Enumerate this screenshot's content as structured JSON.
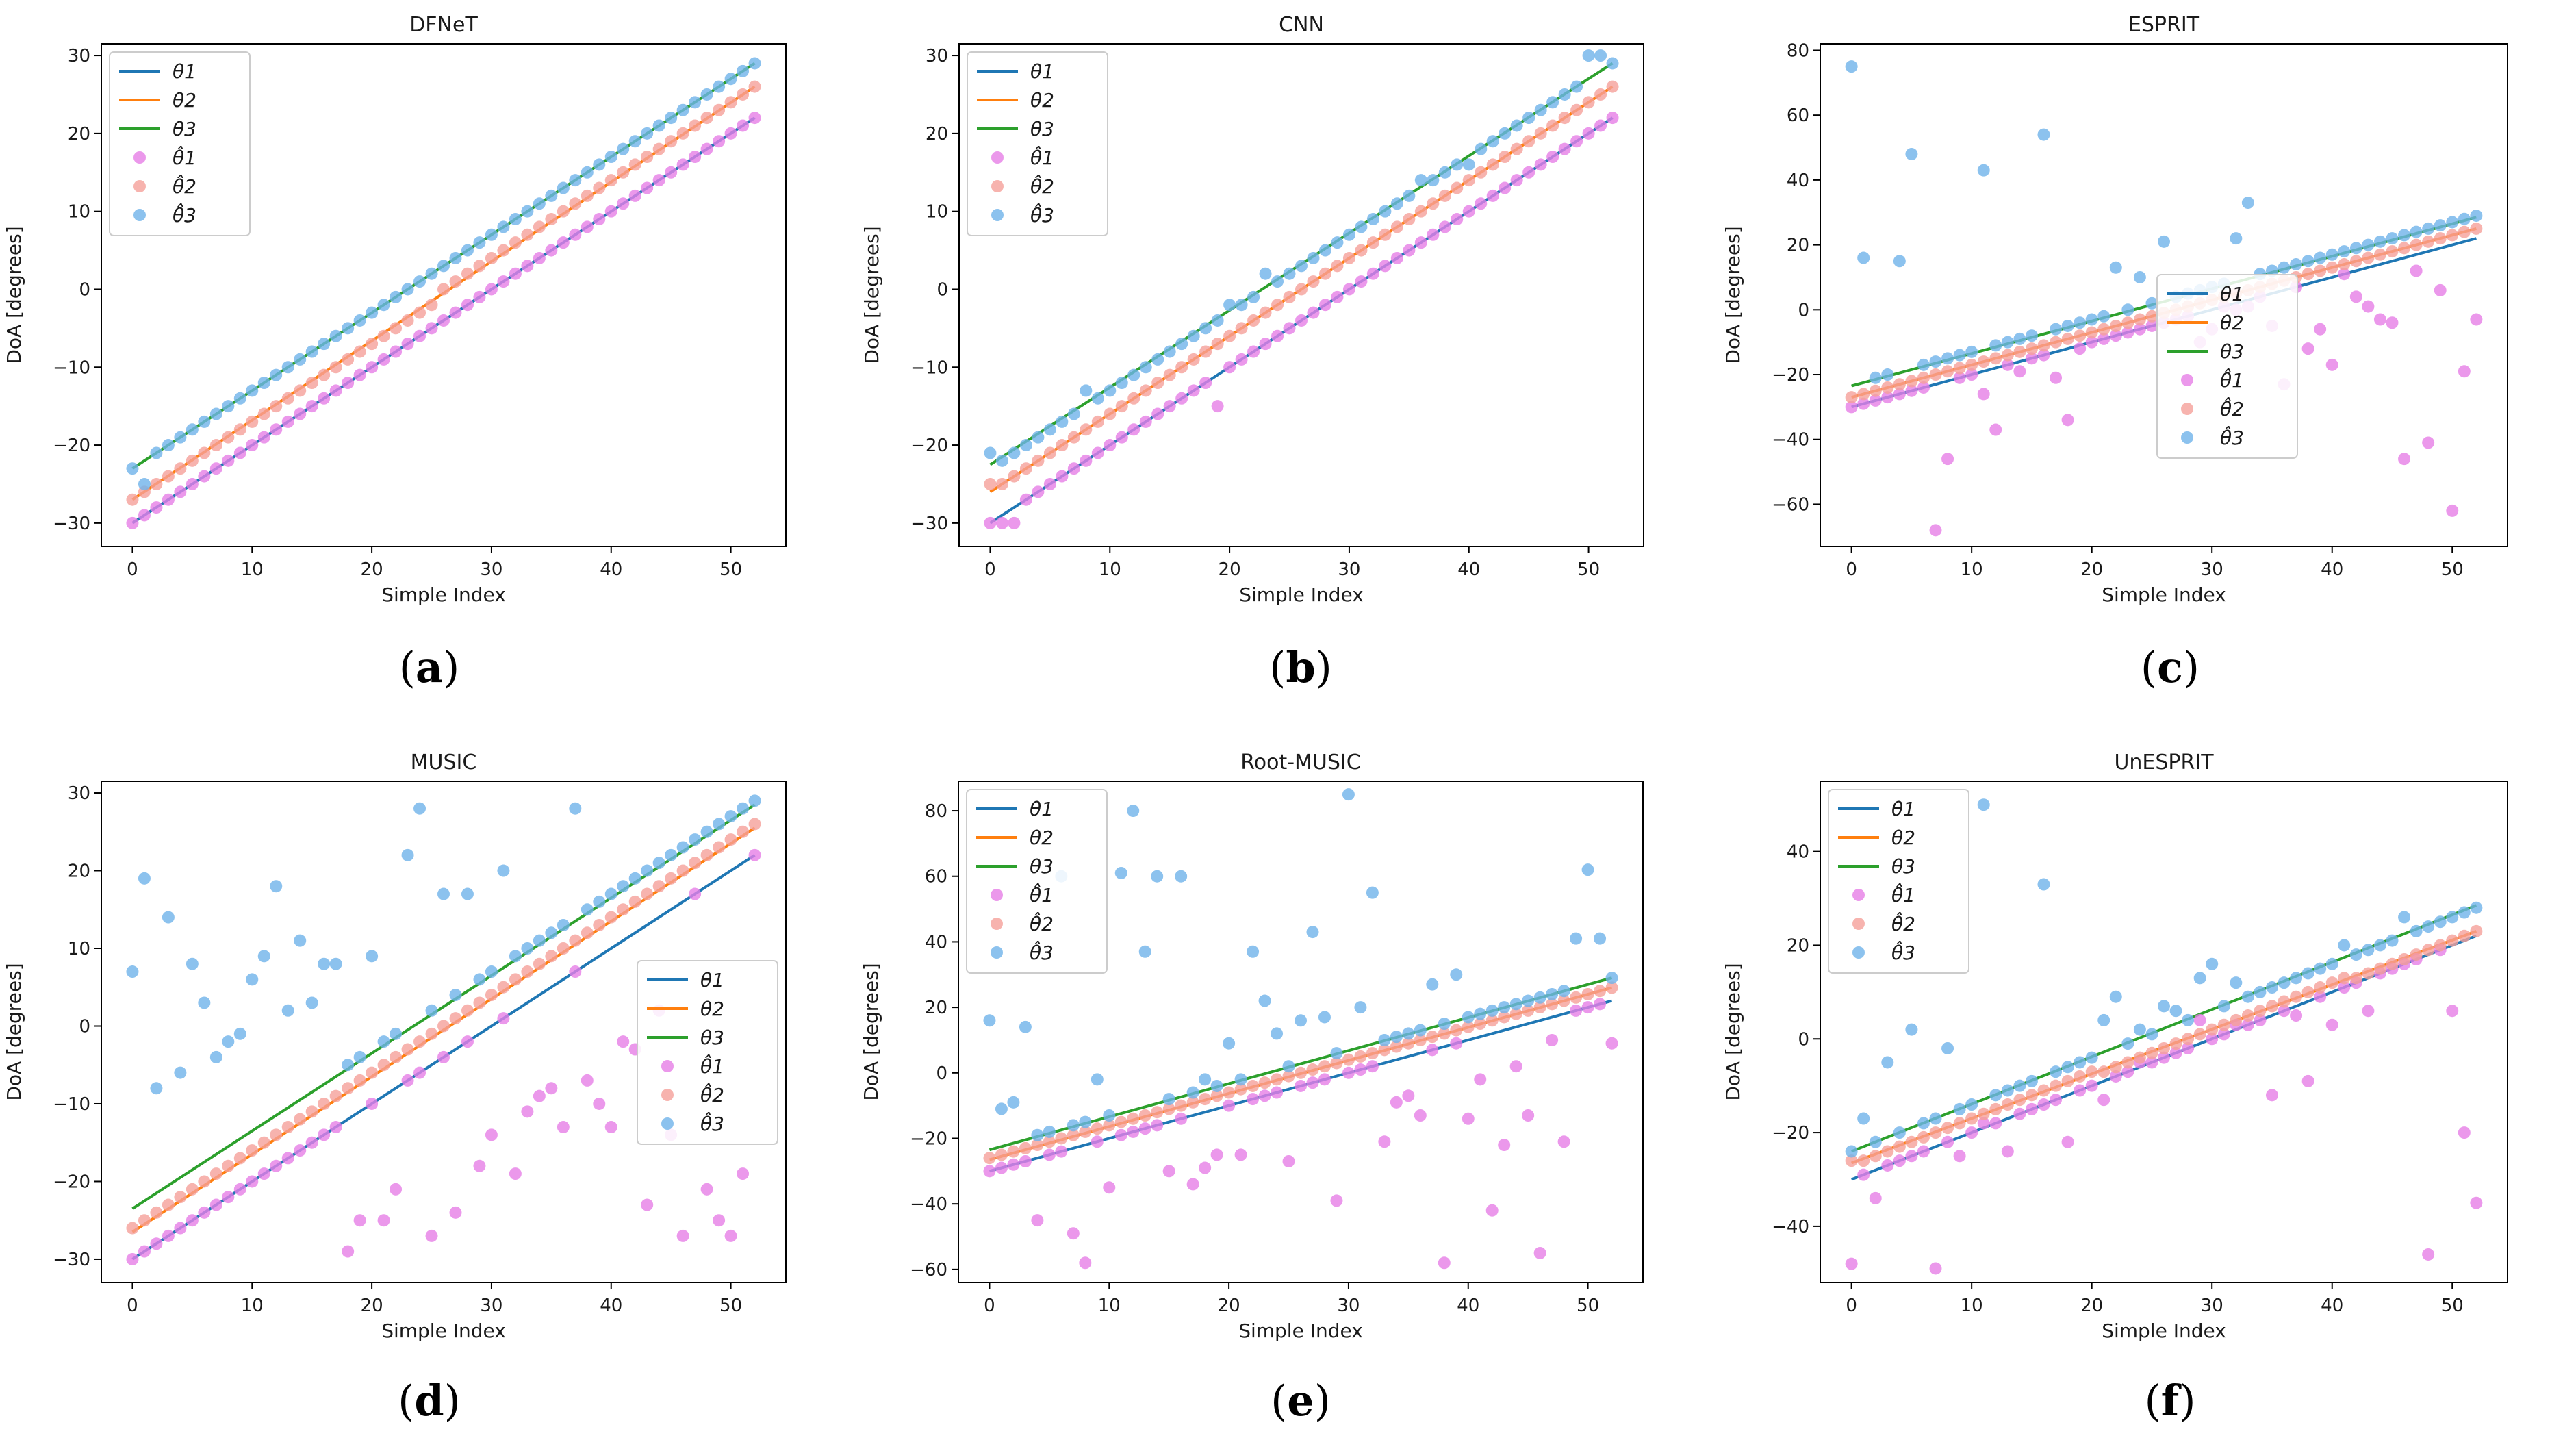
{
  "figure": {
    "legend_labels": [
      "θ1",
      "θ2",
      "θ3",
      "θ̂1",
      "θ̂2",
      "θ̂3"
    ],
    "colors": {
      "theta1": "#1f77b4",
      "theta2": "#ff7f0e",
      "theta3": "#2ca02c",
      "est1": "#e67ee6",
      "est2": "#f5a09a",
      "est3": "#6fb3ea"
    }
  },
  "chart_data": [
    {
      "type": "scatter",
      "title": "DFNeT",
      "caption": "a",
      "xlabel": "Simple Index",
      "ylabel": "DoA [degrees]",
      "xlim": [
        -2.6,
        54.6
      ],
      "ylim": [
        -33,
        31.5
      ],
      "xticks": [
        0,
        10,
        20,
        30,
        40,
        50
      ],
      "yticks": [
        -30,
        -20,
        -10,
        0,
        10,
        20,
        30
      ],
      "legend_loc": "top-left",
      "lines": [
        {
          "name": "θ1",
          "start": -30,
          "end": 22
        },
        {
          "name": "θ2",
          "start": -27,
          "end": 26
        },
        {
          "name": "θ3",
          "start": -23,
          "end": 29
        }
      ],
      "outliers": {
        "est1": [],
        "est2": [],
        "est3": [
          [
            1,
            -25
          ]
        ]
      }
    },
    {
      "type": "scatter",
      "title": "CNN",
      "caption": "b",
      "xlabel": "Simple Index",
      "ylabel": "DoA [degrees]",
      "xlim": [
        -2.6,
        54.6
      ],
      "ylim": [
        -33,
        31.5
      ],
      "xticks": [
        0,
        10,
        20,
        30,
        40,
        50
      ],
      "yticks": [
        -30,
        -20,
        -10,
        0,
        10,
        20,
        30
      ],
      "legend_loc": "top-left",
      "lines": [
        {
          "name": "θ1",
          "start": -30,
          "end": 22
        },
        {
          "name": "θ2",
          "start": -26,
          "end": 26
        },
        {
          "name": "θ3",
          "start": -22.5,
          "end": 29
        }
      ],
      "outliers": {
        "est1": [
          [
            1,
            -30
          ],
          [
            2,
            -30
          ],
          [
            19,
            -15
          ]
        ],
        "est2": [
          [
            0,
            -25
          ]
        ],
        "est3": [
          [
            0,
            -21
          ],
          [
            8,
            -13
          ],
          [
            17,
            -6
          ],
          [
            20,
            -2
          ],
          [
            23,
            2
          ],
          [
            36,
            14
          ],
          [
            40,
            16
          ],
          [
            50,
            30
          ],
          [
            51,
            30
          ]
        ]
      }
    },
    {
      "type": "scatter",
      "title": "ESPRIT",
      "caption": "c",
      "xlabel": "Simple Index",
      "ylabel": "DoA [degrees]",
      "xlim": [
        -2.6,
        54.6
      ],
      "ylim": [
        -73,
        82
      ],
      "xticks": [
        0,
        10,
        20,
        30,
        40,
        50
      ],
      "yticks": [
        -60,
        -40,
        -20,
        0,
        20,
        40,
        60,
        80
      ],
      "legend_loc": "center",
      "lines": [
        {
          "name": "θ1",
          "start": -30,
          "end": 22
        },
        {
          "name": "θ2",
          "start": -27,
          "end": 25
        },
        {
          "name": "θ3",
          "start": -23.5,
          "end": 28.5
        }
      ],
      "outliers": {
        "est1": [
          [
            8,
            -46
          ],
          [
            7,
            -68
          ],
          [
            11,
            -26
          ],
          [
            12,
            -37
          ],
          [
            14,
            -19
          ],
          [
            17,
            -21
          ],
          [
            18,
            -34
          ],
          [
            19,
            -12
          ],
          [
            29,
            -10
          ],
          [
            30,
            -6
          ],
          [
            32,
            0
          ],
          [
            33,
            1
          ],
          [
            35,
            -5
          ],
          [
            36,
            -23
          ],
          [
            38,
            -12
          ],
          [
            39,
            -6
          ],
          [
            40,
            -17
          ],
          [
            42,
            4
          ],
          [
            43,
            1
          ],
          [
            44,
            -3
          ],
          [
            45,
            -4
          ],
          [
            46,
            -46
          ],
          [
            47,
            12
          ],
          [
            48,
            -41
          ],
          [
            49,
            6
          ],
          [
            50,
            -62
          ],
          [
            51,
            -19
          ],
          [
            52,
            -3
          ]
        ],
        "est2": [],
        "est3": [
          [
            0,
            75
          ],
          [
            1,
            16
          ],
          [
            4,
            15
          ],
          [
            5,
            48
          ],
          [
            11,
            43
          ],
          [
            16,
            54
          ],
          [
            22,
            13
          ],
          [
            24,
            10
          ],
          [
            26,
            21
          ],
          [
            32,
            22
          ],
          [
            33,
            33
          ]
        ]
      }
    },
    {
      "type": "scatter",
      "title": "MUSIC",
      "caption": "d",
      "xlabel": "Simple Index",
      "ylabel": "DoA [degrees]",
      "xlim": [
        -2.6,
        54.6
      ],
      "ylim": [
        -33,
        31.5
      ],
      "xticks": [
        0,
        10,
        20,
        30,
        40,
        50
      ],
      "yticks": [
        -30,
        -20,
        -10,
        0,
        10,
        20,
        30
      ],
      "legend_loc": "center-right",
      "lines": [
        {
          "name": "θ1",
          "start": -30,
          "end": 22
        },
        {
          "name": "θ2",
          "start": -26.5,
          "end": 25.5
        },
        {
          "name": "θ3",
          "start": -23.5,
          "end": 28.5
        }
      ],
      "outliers": {
        "est1": [
          [
            18,
            -29
          ],
          [
            19,
            -25
          ],
          [
            21,
            -25
          ],
          [
            22,
            -21
          ],
          [
            25,
            -27
          ],
          [
            27,
            -24
          ],
          [
            29,
            -18
          ],
          [
            30,
            -14
          ],
          [
            32,
            -19
          ],
          [
            33,
            -11
          ],
          [
            34,
            -9
          ],
          [
            35,
            -8
          ],
          [
            36,
            -13
          ],
          [
            38,
            -7
          ],
          [
            39,
            -10
          ],
          [
            40,
            -13
          ],
          [
            41,
            -2
          ],
          [
            42,
            -3
          ],
          [
            43,
            -23
          ],
          [
            44,
            2
          ],
          [
            45,
            -14
          ],
          [
            46,
            -27
          ],
          [
            48,
            -21
          ],
          [
            49,
            -25
          ],
          [
            50,
            -27
          ],
          [
            51,
            -19
          ]
        ],
        "est2": [],
        "est3": [
          [
            0,
            7
          ],
          [
            1,
            19
          ],
          [
            2,
            -8
          ],
          [
            3,
            14
          ],
          [
            4,
            -6
          ],
          [
            5,
            8
          ],
          [
            6,
            3
          ],
          [
            7,
            -4
          ],
          [
            8,
            -2
          ],
          [
            9,
            -1
          ],
          [
            10,
            6
          ],
          [
            11,
            9
          ],
          [
            12,
            18
          ],
          [
            13,
            2
          ],
          [
            14,
            11
          ],
          [
            15,
            3
          ],
          [
            16,
            8
          ],
          [
            17,
            8
          ],
          [
            20,
            9
          ],
          [
            23,
            22
          ],
          [
            24,
            28
          ],
          [
            26,
            17
          ],
          [
            28,
            17
          ],
          [
            31,
            20
          ],
          [
            37,
            28
          ]
        ]
      }
    },
    {
      "type": "scatter",
      "title": "Root-MUSIC",
      "caption": "e",
      "xlabel": "Simple Index",
      "ylabel": "DoA [degrees]",
      "xlim": [
        -2.6,
        54.6
      ],
      "ylim": [
        -64,
        89
      ],
      "xticks": [
        0,
        10,
        20,
        30,
        40,
        50
      ],
      "yticks": [
        -60,
        -40,
        -20,
        0,
        20,
        40,
        60,
        80
      ],
      "legend_loc": "top-left",
      "lines": [
        {
          "name": "θ1",
          "start": -30,
          "end": 22
        },
        {
          "name": "θ2",
          "start": -26.5,
          "end": 26
        },
        {
          "name": "θ3",
          "start": -23.5,
          "end": 29
        }
      ],
      "outliers": {
        "est1": [
          [
            4,
            -45
          ],
          [
            7,
            -49
          ],
          [
            8,
            -58
          ],
          [
            10,
            -35
          ],
          [
            15,
            -30
          ],
          [
            17,
            -34
          ],
          [
            18,
            -29
          ],
          [
            19,
            -25
          ],
          [
            21,
            -25
          ],
          [
            25,
            -27
          ],
          [
            29,
            -39
          ],
          [
            33,
            -21
          ],
          [
            34,
            -9
          ],
          [
            35,
            -7
          ],
          [
            36,
            -13
          ],
          [
            38,
            -58
          ],
          [
            40,
            -14
          ],
          [
            41,
            -2
          ],
          [
            42,
            -42
          ],
          [
            43,
            -22
          ],
          [
            44,
            2
          ],
          [
            45,
            -13
          ],
          [
            46,
            -55
          ],
          [
            47,
            10
          ],
          [
            48,
            -21
          ],
          [
            52,
            9
          ]
        ],
        "est2": [],
        "est3": [
          [
            0,
            16
          ],
          [
            1,
            -11
          ],
          [
            2,
            -9
          ],
          [
            3,
            14
          ],
          [
            6,
            60
          ],
          [
            9,
            -2
          ],
          [
            11,
            61
          ],
          [
            12,
            80
          ],
          [
            13,
            37
          ],
          [
            14,
            60
          ],
          [
            16,
            60
          ],
          [
            18,
            -2
          ],
          [
            20,
            9
          ],
          [
            22,
            37
          ],
          [
            23,
            22
          ],
          [
            24,
            12
          ],
          [
            26,
            16
          ],
          [
            27,
            43
          ],
          [
            28,
            17
          ],
          [
            30,
            85
          ],
          [
            31,
            20
          ],
          [
            32,
            55
          ],
          [
            37,
            27
          ],
          [
            39,
            30
          ],
          [
            50,
            62
          ],
          [
            51,
            41
          ],
          [
            49,
            41
          ]
        ]
      }
    },
    {
      "type": "scatter",
      "title": "UnESPRIT",
      "caption": "f",
      "xlabel": "Simple Index",
      "ylabel": "DoA [degrees]",
      "xlim": [
        -2.6,
        54.6
      ],
      "ylim": [
        -52,
        55
      ],
      "xticks": [
        0,
        10,
        20,
        30,
        40,
        50
      ],
      "yticks": [
        -40,
        -20,
        0,
        20,
        40
      ],
      "legend_loc": "top-left",
      "lines": [
        {
          "name": "θ1",
          "start": -30,
          "end": 22
        },
        {
          "name": "θ2",
          "start": -26.5,
          "end": 23
        },
        {
          "name": "θ3",
          "start": -24,
          "end": 28.5
        }
      ],
      "outliers": {
        "est1": [
          [
            0,
            -48
          ],
          [
            2,
            -34
          ],
          [
            7,
            -49
          ],
          [
            9,
            -25
          ],
          [
            11,
            -18
          ],
          [
            13,
            -24
          ],
          [
            18,
            -22
          ],
          [
            21,
            -13
          ],
          [
            24,
            -5
          ],
          [
            29,
            4
          ],
          [
            32,
            3
          ],
          [
            35,
            -12
          ],
          [
            37,
            5
          ],
          [
            38,
            -9
          ],
          [
            40,
            3
          ],
          [
            43,
            6
          ],
          [
            48,
            -46
          ],
          [
            50,
            6
          ],
          [
            51,
            -20
          ],
          [
            52,
            -35
          ]
        ],
        "est2": [],
        "est3": [
          [
            1,
            -17
          ],
          [
            3,
            -5
          ],
          [
            5,
            2
          ],
          [
            8,
            -2
          ],
          [
            11,
            50
          ],
          [
            16,
            33
          ],
          [
            21,
            4
          ],
          [
            22,
            9
          ],
          [
            24,
            2
          ],
          [
            26,
            7
          ],
          [
            27,
            6
          ],
          [
            29,
            13
          ],
          [
            30,
            16
          ],
          [
            32,
            12
          ],
          [
            41,
            20
          ],
          [
            46,
            26
          ],
          [
            52,
            28
          ]
        ]
      }
    }
  ]
}
